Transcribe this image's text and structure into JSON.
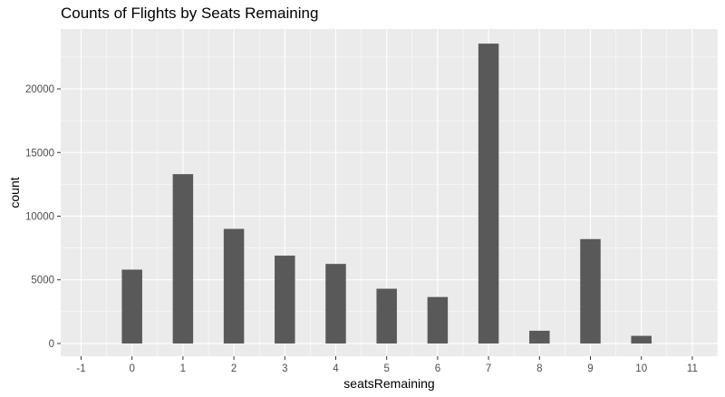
{
  "chart_data": {
    "type": "bar",
    "title": "Counts of Flights by Seats Remaining",
    "xlabel": "seatsRemaining",
    "ylabel": "count",
    "x_ticks": [
      "-1",
      "0",
      "1",
      "2",
      "3",
      "4",
      "5",
      "6",
      "7",
      "8",
      "9",
      "10",
      "11"
    ],
    "y_ticks": [
      "0",
      "5000",
      "10000",
      "15000",
      "20000"
    ],
    "categories": [
      0,
      1,
      2,
      3,
      4,
      5,
      6,
      7,
      8,
      9,
      10
    ],
    "values": [
      5800,
      13300,
      9000,
      6900,
      6250,
      4300,
      3650,
      23550,
      1000,
      8200,
      600
    ],
    "xlim": [
      -1.4,
      11.5
    ],
    "ylim": [
      -1000,
      24700
    ],
    "bar_width": 0.4,
    "grid": true,
    "colors": {
      "panel_bg": "#ebebeb",
      "grid_major": "#ffffff",
      "bar": "#595959"
    }
  }
}
